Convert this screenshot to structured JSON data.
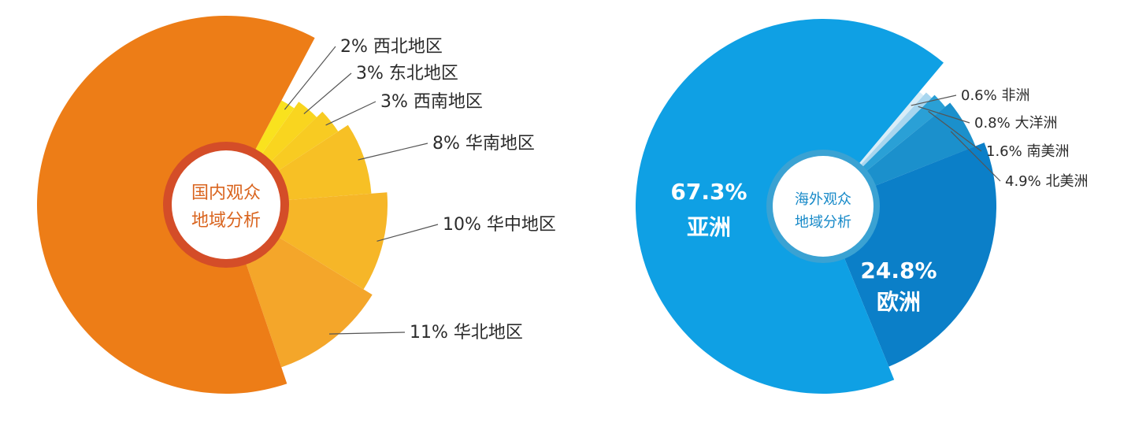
{
  "chart_data": [
    {
      "type": "pie",
      "center_label": [
        "国内观众",
        "地域分析"
      ],
      "slices": [
        {
          "label": "西北地区",
          "percent_label": "2%",
          "value": 2,
          "color": "#f9e21e"
        },
        {
          "label": "东北地区",
          "percent_label": "3%",
          "value": 3,
          "color": "#f9d51f"
        },
        {
          "label": "西南地区",
          "percent_label": "3%",
          "value": 3,
          "color": "#f8cb22"
        },
        {
          "label": "华南地区",
          "percent_label": "8%",
          "value": 8,
          "color": "#f7c025"
        },
        {
          "label": "华中地区",
          "percent_label": "10%",
          "value": 10,
          "color": "#f6b628"
        },
        {
          "label": "华北地区",
          "percent_label": "11%",
          "value": 11,
          "color": "#f4a62a"
        },
        {
          "label": "",
          "percent_label": "",
          "value": 63,
          "color": "#ed7d17"
        }
      ]
    },
    {
      "type": "pie",
      "center_label": [
        "海外观众",
        "地域分析"
      ],
      "slices": [
        {
          "label": "非洲",
          "percent_label": "0.6%",
          "value": 0.6,
          "color": "#d9edf8"
        },
        {
          "label": "大洋洲",
          "percent_label": "0.8%",
          "value": 0.8,
          "color": "#a8d6ef"
        },
        {
          "label": "南美洲",
          "percent_label": "1.6%",
          "value": 1.6,
          "color": "#2aa0d6"
        },
        {
          "label": "北美洲",
          "percent_label": "4.9%",
          "value": 4.9,
          "color": "#1b90cc"
        },
        {
          "label": "欧洲",
          "percent_label": "24.8%",
          "value": 24.8,
          "color": "#0b7fc8"
        },
        {
          "label": "亚洲",
          "percent_label": "67.3%",
          "value": 67.3,
          "color": "#0fa0e4"
        }
      ]
    }
  ]
}
